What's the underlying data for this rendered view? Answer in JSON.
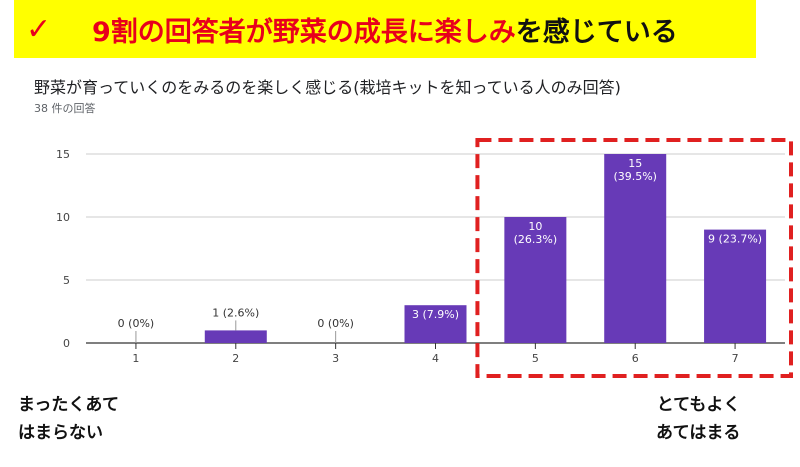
{
  "banner": {
    "check": "✓",
    "highlight": "9割の回答者が野菜の成長に楽しみ",
    "rest": "を感じている"
  },
  "question": {
    "title": "野菜が育っていくのをみるのを楽しく感じる(栽培キットを知っている人のみ回答)",
    "count": "38 件の回答"
  },
  "scale_labels": {
    "left": [
      "まったくあて",
      "はまらない"
    ],
    "right": [
      "とてもよく",
      "あてはまる"
    ]
  },
  "colors": {
    "bar": "#673ab7",
    "highlight_box": "#e02020",
    "banner_bg": "#ffff00",
    "banner_text": "#e8001c"
  },
  "chart_data": {
    "type": "bar",
    "categories": [
      "1",
      "2",
      "3",
      "4",
      "5",
      "6",
      "7"
    ],
    "values": [
      0,
      1,
      0,
      3,
      10,
      15,
      9
    ],
    "data_labels": [
      "0 (0%)",
      "1 (2.6%)",
      "0 (0%)",
      "3 (7.9%)",
      "10\n(26.3%)",
      "15\n(39.5%)",
      "9 (23.7%)"
    ],
    "yticks": [
      0,
      5,
      10,
      15
    ],
    "ylim": [
      0,
      15
    ],
    "grid": true,
    "highlighted_categories": [
      "5",
      "6",
      "7"
    ]
  }
}
